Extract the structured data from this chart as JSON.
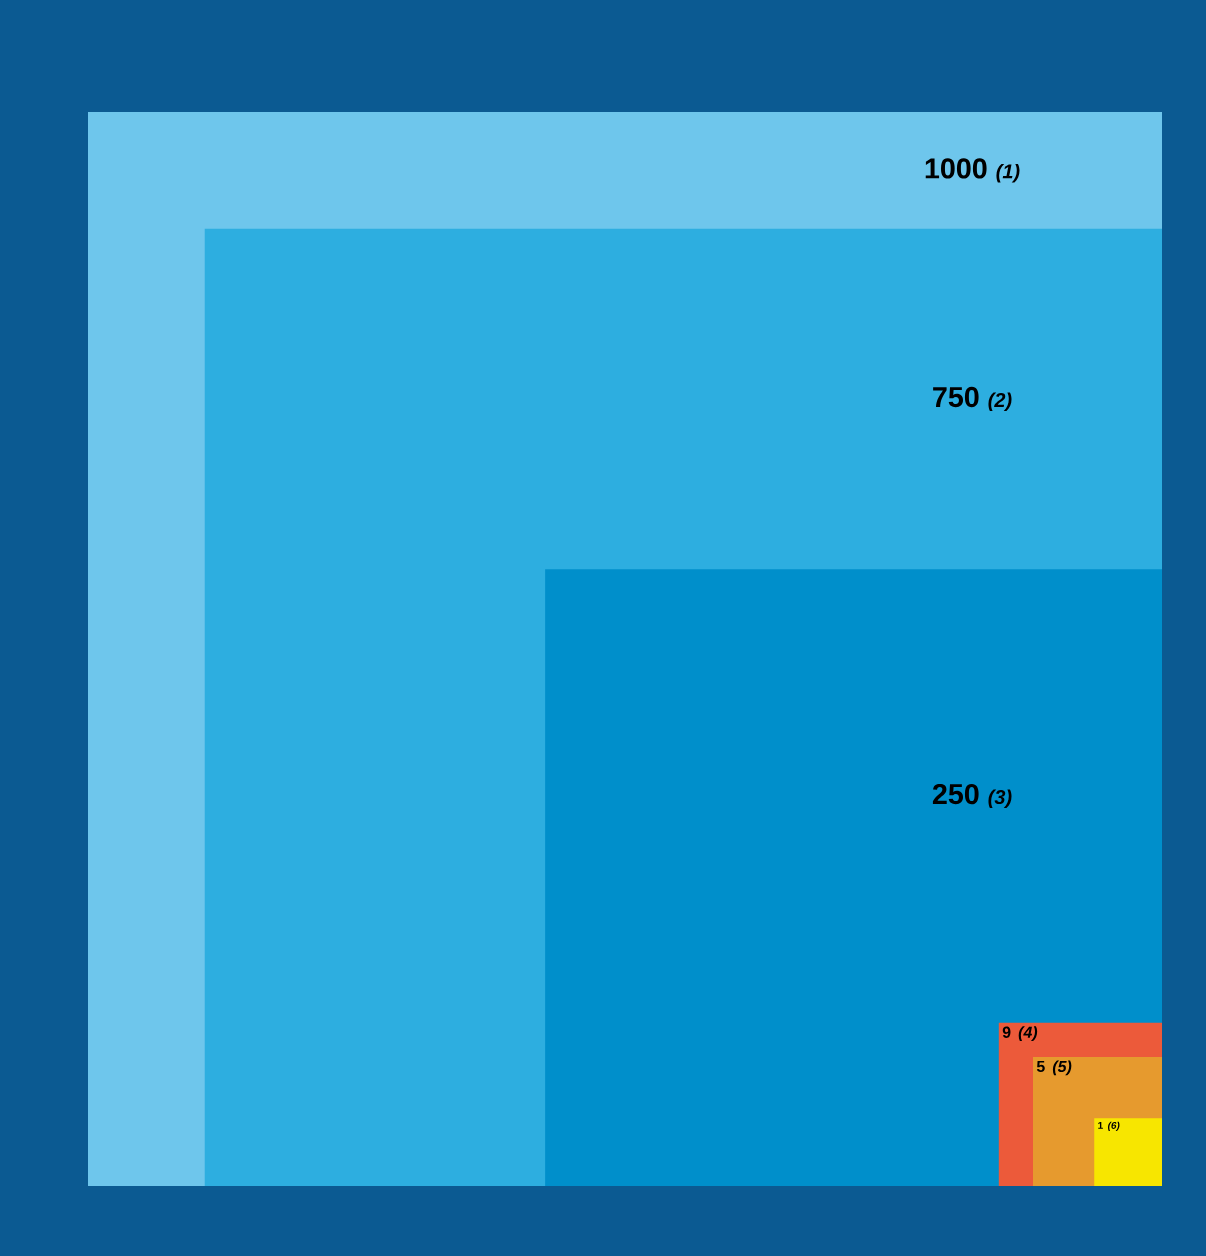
{
  "chart_data": {
    "type": "other",
    "categories": [
      "(1)",
      "(2)",
      "(3)",
      "(4)",
      "(5)",
      "(6)"
    ],
    "values": [
      1000,
      750,
      250,
      9,
      5,
      1
    ],
    "colors": [
      "#6ec6ec",
      "#2daee0",
      "#008fcb",
      "#ec5a3a",
      "#e69a2e",
      "#f7e600"
    ],
    "data_labels": true
  }
}
